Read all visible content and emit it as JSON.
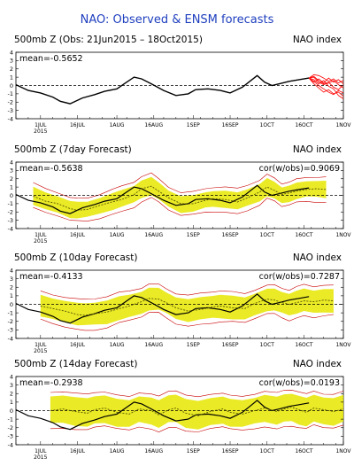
{
  "figure": {
    "title": "NAO: Observed & ENSM forecasts",
    "colors": {
      "title": "#1f3fbf",
      "observed": "#000000",
      "spread": "#e6e600",
      "member": "#c80000",
      "recent_obs": "#ff0000",
      "zero_line": "#000000"
    }
  },
  "chart_data": [
    {
      "type": "line",
      "title": "500mb Z (Obs: 21Jun2015 – 18Oct2015)",
      "right_label": "NAO index",
      "stat_text": "mean=-0.5652",
      "stat_right": "",
      "ylim": [
        -4,
        4
      ],
      "yticks": [
        -4,
        -3,
        -2,
        -1,
        0,
        1,
        2,
        3,
        4
      ],
      "xlim": [
        0,
        133
      ],
      "xticks": [
        10,
        25,
        41,
        56,
        72,
        87,
        102,
        117,
        133
      ],
      "xtick_labels": [
        "1JUL",
        "16JUL",
        "1AUG",
        "16AUG",
        "1SEP",
        "16SEP",
        "1OCT",
        "16OCT",
        "1NOV"
      ],
      "year_label": "2015",
      "zero_dashed": true,
      "band": false,
      "series": [
        {
          "role": "observed",
          "x": [
            0,
            5,
            10,
            15,
            18,
            22,
            27,
            32,
            36,
            41,
            44,
            48,
            51,
            55,
            60,
            65,
            70,
            73,
            78,
            83,
            87,
            92,
            95,
            98,
            101,
            104,
            107,
            111,
            115,
            119
          ],
          "y": [
            0.1,
            -0.6,
            -0.9,
            -1.4,
            -1.9,
            -2.2,
            -1.5,
            -1.1,
            -0.7,
            -0.4,
            0.2,
            1.0,
            0.8,
            0.2,
            -0.6,
            -1.2,
            -1.0,
            -0.5,
            -0.4,
            -0.6,
            -0.9,
            -0.2,
            0.5,
            1.2,
            0.4,
            0.0,
            0.2,
            0.5,
            0.7,
            0.9
          ]
        },
        {
          "role": "forecast_members",
          "x_start": 119,
          "x_end": 133,
          "members": [
            [
              0.9,
              1.1,
              0.6,
              0.2,
              0.4,
              -0.2,
              -0.5,
              0.1
            ],
            [
              0.9,
              0.5,
              0.0,
              -0.4,
              -0.8,
              -1.1,
              -0.6,
              -0.9
            ],
            [
              0.9,
              1.3,
              1.2,
              0.9,
              0.5,
              0.8,
              0.3,
              0.6
            ],
            [
              0.9,
              0.7,
              0.2,
              0.6,
              -0.1,
              -0.4,
              -1.2,
              -1.6
            ],
            [
              0.9,
              0.4,
              0.8,
              0.3,
              0.9,
              0.4,
              0.7,
              0.2
            ],
            [
              0.9,
              0.2,
              -0.3,
              -0.8,
              -0.5,
              -1.0,
              -0.8,
              -1.3
            ],
            [
              0.9,
              1.0,
              0.4,
              0.1,
              0.3,
              0.6,
              0.1,
              -0.3
            ]
          ]
        }
      ]
    },
    {
      "type": "line",
      "title": "500mb Z (7day Forecast)",
      "right_label": "NAO index",
      "stat_text": "mean=-0.5638",
      "stat_right": "cor(w/obs)=0.9069",
      "ylim": [
        -4,
        4
      ],
      "yticks": [
        -4,
        -3,
        -2,
        -1,
        0,
        1,
        2,
        3,
        4
      ],
      "xlim": [
        0,
        133
      ],
      "xticks": [
        10,
        25,
        41,
        56,
        72,
        87,
        102,
        117,
        133
      ],
      "xtick_labels": [
        "1JUL",
        "16JUL",
        "1AUG",
        "16AUG",
        "1SEP",
        "16SEP",
        "1OCT",
        "16OCT",
        "1NOV"
      ],
      "year_label": "2015",
      "zero_dashed": true,
      "band": true,
      "series": [
        {
          "role": "observed",
          "x": [
            0,
            5,
            10,
            15,
            18,
            22,
            27,
            32,
            36,
            41,
            44,
            48,
            51,
            55,
            60,
            65,
            70,
            73,
            78,
            83,
            87,
            92,
            95,
            98,
            101,
            104,
            107,
            111,
            115,
            119
          ],
          "y": [
            0.1,
            -0.6,
            -0.9,
            -1.4,
            -1.9,
            -2.2,
            -1.5,
            -1.1,
            -0.7,
            -0.4,
            0.2,
            1.0,
            0.8,
            0.2,
            -0.6,
            -1.2,
            -1.0,
            -0.5,
            -0.4,
            -0.6,
            -0.9,
            -0.2,
            0.5,
            1.2,
            0.4,
            0.0,
            0.2,
            0.5,
            0.7,
            0.9
          ]
        },
        {
          "role": "forecast_mean",
          "x": [
            7,
            12,
            17,
            22,
            25,
            29,
            34,
            39,
            43,
            48,
            51,
            55,
            58,
            62,
            67,
            72,
            77,
            80,
            85,
            90,
            94,
            99,
            102,
            105,
            108,
            111,
            114,
            118,
            122,
            126
          ],
          "y": [
            -0.1,
            -0.7,
            -1.0,
            -1.6,
            -1.8,
            -1.7,
            -1.2,
            -0.8,
            -0.5,
            0.1,
            0.8,
            1.1,
            0.5,
            -0.3,
            -1.0,
            -1.0,
            -0.6,
            -0.4,
            -0.5,
            -0.8,
            -0.3,
            0.4,
            1.0,
            0.6,
            0.1,
            0.3,
            0.5,
            0.7,
            0.8,
            0.7
          ]
        }
      ]
    },
    {
      "type": "line",
      "title": "500mb Z (10day Forecast)",
      "right_label": "NAO index",
      "stat_text": "mean=-0.4133",
      "stat_right": "cor(w/obs)=0.7287",
      "ylim": [
        -4,
        4
      ],
      "yticks": [
        -4,
        -3,
        -2,
        -1,
        0,
        1,
        2,
        3,
        4
      ],
      "xlim": [
        0,
        133
      ],
      "xticks": [
        10,
        25,
        41,
        56,
        72,
        87,
        102,
        117,
        133
      ],
      "xtick_labels": [
        "1JUL",
        "16JUL",
        "1AUG",
        "16AUG",
        "1SEP",
        "16SEP",
        "1OCT",
        "16OCT",
        "1NOV"
      ],
      "year_label": "2015",
      "zero_dashed": true,
      "band": true,
      "series": [
        {
          "role": "observed",
          "x": [
            0,
            5,
            10,
            15,
            18,
            22,
            27,
            32,
            36,
            41,
            44,
            48,
            51,
            55,
            60,
            65,
            70,
            73,
            78,
            83,
            87,
            92,
            95,
            98,
            101,
            104,
            107,
            111,
            115,
            119
          ],
          "y": [
            0.1,
            -0.6,
            -0.9,
            -1.4,
            -1.9,
            -2.2,
            -1.5,
            -1.1,
            -0.7,
            -0.4,
            0.2,
            1.0,
            0.8,
            0.2,
            -0.6,
            -1.2,
            -1.0,
            -0.5,
            -0.4,
            -0.6,
            -0.9,
            -0.2,
            0.5,
            1.2,
            0.4,
            0.0,
            0.2,
            0.5,
            0.7,
            0.9
          ]
        },
        {
          "role": "forecast_mean",
          "x": [
            10,
            15,
            20,
            25,
            28,
            32,
            37,
            42,
            46,
            51,
            54,
            58,
            61,
            65,
            70,
            75,
            80,
            83,
            88,
            93,
            97,
            102,
            105,
            108,
            111,
            114,
            117,
            121,
            125,
            129
          ],
          "y": [
            -0.2,
            -0.5,
            -0.8,
            -1.2,
            -1.3,
            -1.1,
            -0.9,
            -0.5,
            -0.2,
            0.3,
            0.7,
            0.6,
            0.2,
            -0.4,
            -0.8,
            -0.6,
            -0.3,
            -0.2,
            -0.4,
            -0.5,
            0.1,
            0.6,
            0.5,
            0.2,
            0.0,
            0.2,
            0.4,
            0.3,
            0.5,
            0.4
          ]
        }
      ]
    },
    {
      "type": "line",
      "title": "500mb Z (14day Forecast)",
      "right_label": "NAO index",
      "stat_text": "mean=-0.2938",
      "stat_right": "cor(w/obs)=0.0193",
      "ylim": [
        -4,
        4
      ],
      "yticks": [
        -4,
        -3,
        -2,
        -1,
        0,
        1,
        2,
        3,
        4
      ],
      "xlim": [
        0,
        133
      ],
      "xticks": [
        10,
        25,
        41,
        56,
        72,
        87,
        102,
        117,
        133
      ],
      "xtick_labels": [
        "1JUL",
        "16JUL",
        "1AUG",
        "16AUG",
        "1SEP",
        "16SEP",
        "1OCT",
        "16OCT",
        "1NOV"
      ],
      "year_label": "2015",
      "zero_dashed": true,
      "band": true,
      "series": [
        {
          "role": "observed",
          "x": [
            0,
            5,
            10,
            15,
            18,
            22,
            27,
            32,
            36,
            41,
            44,
            48,
            51,
            55,
            60,
            65,
            70,
            73,
            78,
            83,
            87,
            92,
            95,
            98,
            101,
            104,
            107,
            111,
            115,
            119
          ],
          "y": [
            0.1,
            -0.6,
            -0.9,
            -1.4,
            -1.9,
            -2.2,
            -1.5,
            -1.1,
            -0.7,
            -0.4,
            0.2,
            1.0,
            0.8,
            0.2,
            -0.6,
            -1.2,
            -1.0,
            -0.5,
            -0.4,
            -0.6,
            -0.9,
            -0.2,
            0.5,
            1.2,
            0.4,
            0.0,
            0.2,
            0.5,
            0.7,
            0.9
          ]
        },
        {
          "role": "forecast_mean",
          "x": [
            14,
            19,
            24,
            29,
            32,
            36,
            41,
            46,
            50,
            55,
            58,
            62,
            65,
            69,
            74,
            79,
            84,
            87,
            92,
            97,
            101,
            106,
            109,
            112,
            115,
            118,
            121,
            125,
            129,
            133
          ],
          "y": [
            0.0,
            0.2,
            -0.1,
            -0.3,
            0.1,
            0.3,
            -0.2,
            -0.4,
            0.2,
            0.0,
            -0.5,
            0.1,
            0.3,
            -0.3,
            -0.6,
            -0.1,
            0.2,
            -0.2,
            -0.4,
            0.0,
            0.3,
            -0.1,
            0.2,
            0.4,
            0.1,
            -0.2,
            0.3,
            0.1,
            -0.1,
            0.2
          ]
        }
      ]
    }
  ]
}
